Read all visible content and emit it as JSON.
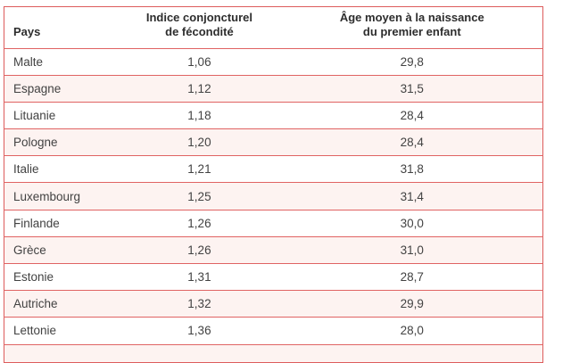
{
  "chart_data": {
    "type": "table",
    "columns": [
      {
        "label": "Pays",
        "align": "left"
      },
      {
        "label": "Indice conjoncturel\nde fécondité",
        "align": "center"
      },
      {
        "label": "Âge moyen à la naissance\ndu premier enfant",
        "align": "center"
      }
    ],
    "rows": [
      [
        "Malte",
        "1,06",
        "29,8"
      ],
      [
        "Espagne",
        "1,12",
        "31,5"
      ],
      [
        "Lituanie",
        "1,18",
        "28,4"
      ],
      [
        "Pologne",
        "1,20",
        "28,4"
      ],
      [
        "Italie",
        "1,21",
        "31,8"
      ],
      [
        "Luxembourg",
        "1,25",
        "31,4"
      ],
      [
        "Finlande",
        "1,26",
        "30,0"
      ],
      [
        "Grèce",
        "1,26",
        "31,0"
      ],
      [
        "Estonie",
        "1,31",
        "28,7"
      ],
      [
        "Autriche",
        "1,32",
        "29,9"
      ],
      [
        "Lettonie",
        "1,36",
        "28,0"
      ]
    ],
    "layout": {
      "striped": true,
      "first_data_row_background": "white",
      "column_separators": false,
      "row_separators": true,
      "next_row_partially_visible": true
    }
  },
  "colors": {
    "border": "#e06363",
    "outer_border": "#dd5c5c",
    "row_bg": "#ffffff",
    "row_alt_bg": "#fdf3f1",
    "header_text": "#2d2d2d",
    "body_text": "#424242"
  }
}
